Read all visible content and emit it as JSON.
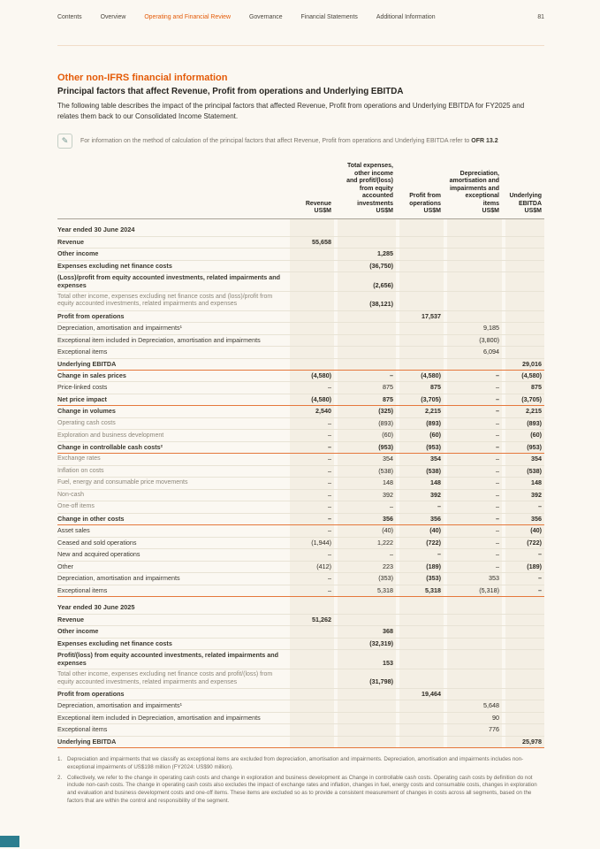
{
  "page": {
    "number": "81",
    "nav": {
      "items": [
        "Contents",
        "Overview",
        "Operating and Financial Review",
        "Governance",
        "Financial Statements",
        "Additional Information"
      ],
      "active": "Operating and Financial Review"
    }
  },
  "section": {
    "title": "Other non-IFRS financial information",
    "subtitle": "Principal factors that affect Revenue, Profit from operations and Underlying EBITDA",
    "description": "The following table describes the impact of the principal factors that affected Revenue, Profit from operations and Underlying EBITDA for FY2025 and relates them back to our Consolidated Income Statement.",
    "note": "For information on the method of calculation of the principal factors that affect Revenue, Profit from operations and Underlying EBITDA refer to ",
    "note_ref": "OFR 13.2"
  },
  "table": {
    "col_headers": [
      "Revenue\nUS$M",
      "Total expenses,\nother income\nand profit/(loss)\nfrom equity\naccounted\ninvestments\nUS$M",
      "Profit from\noperations\nUS$M",
      "Depreciation,\namortisation and\nimpairments and\nexceptional\nitems\nUS$M",
      "Underlying\nEBITDA\nUS$M"
    ],
    "rows": [
      {
        "label": "Year ended 30 June 2024",
        "type": "section",
        "values": [
          "",
          "",
          "",
          "",
          ""
        ]
      },
      {
        "label": "Revenue",
        "type": "bold",
        "values": [
          "55,658",
          "",
          "",
          "",
          ""
        ]
      },
      {
        "label": "Other income",
        "type": "bold",
        "values": [
          "",
          "1,285",
          "",
          "",
          ""
        ]
      },
      {
        "label": "Expenses excluding net finance costs",
        "type": "bold",
        "values": [
          "",
          "(36,750)",
          "",
          "",
          ""
        ]
      },
      {
        "label": "(Loss)/profit from equity accounted investments, related impairments and expenses",
        "type": "bold",
        "values": [
          "",
          "(2,656)",
          "",
          "",
          ""
        ]
      },
      {
        "label": "Total other income, expenses excluding net finance costs and (loss)/profit from equity accounted investments, related impairments and expenses",
        "type": "gray",
        "vb": true,
        "values": [
          "",
          "(38,121)",
          "",
          "",
          ""
        ]
      },
      {
        "label": "Profit from operations",
        "type": "bold",
        "values": [
          "",
          "",
          "17,537",
          "",
          ""
        ]
      },
      {
        "label": "Depreciation, amortisation and impairments¹",
        "type": "normal",
        "values": [
          "",
          "",
          "",
          "9,185",
          ""
        ]
      },
      {
        "label": "Exceptional item included in Depreciation, amortisation and impairments",
        "type": "normal",
        "values": [
          "",
          "",
          "",
          "(3,800)",
          ""
        ]
      },
      {
        "label": "Exceptional items",
        "type": "normal",
        "values": [
          "",
          "",
          "",
          "6,094",
          ""
        ]
      },
      {
        "label": "Underlying EBITDA",
        "type": "bold",
        "orange": true,
        "values": [
          "",
          "",
          "",
          "",
          "29,016"
        ]
      },
      {
        "label": "Change in sales prices",
        "type": "bold",
        "emph": true,
        "values": [
          "(4,580)",
          "–",
          "(4,580)",
          "–",
          "(4,580)"
        ]
      },
      {
        "label": "Price-linked costs",
        "type": "normal",
        "emph": true,
        "values": [
          "–",
          "875",
          "875",
          "–",
          "875"
        ]
      },
      {
        "label": "Net price impact",
        "type": "bold",
        "orange": true,
        "values": [
          "(4,580)",
          "875",
          "(3,705)",
          "–",
          "(3,705)"
        ]
      },
      {
        "label": "Change in volumes",
        "type": "bold",
        "emph": true,
        "values": [
          "2,540",
          "(325)",
          "2,215",
          "–",
          "2,215"
        ]
      },
      {
        "label": "Operating cash costs",
        "type": "gray",
        "emph": true,
        "values": [
          "–",
          "(893)",
          "(893)",
          "–",
          "(893)"
        ]
      },
      {
        "label": "Exploration and business development",
        "type": "gray",
        "emph": true,
        "values": [
          "–",
          "(60)",
          "(60)",
          "–",
          "(60)"
        ]
      },
      {
        "label": "Change in controllable cash costs²",
        "type": "bold",
        "orange": true,
        "values": [
          "–",
          "(953)",
          "(953)",
          "–",
          "(953)"
        ]
      },
      {
        "label": "Exchange rates",
        "type": "gray",
        "emph": true,
        "values": [
          "–",
          "354",
          "354",
          "–",
          "354"
        ]
      },
      {
        "label": "Inflation on costs",
        "type": "gray",
        "emph": true,
        "values": [
          "–",
          "(538)",
          "(538)",
          "–",
          "(538)"
        ]
      },
      {
        "label": "Fuel, energy and consumable price movements",
        "type": "gray",
        "emph": true,
        "values": [
          "–",
          "148",
          "148",
          "–",
          "148"
        ]
      },
      {
        "label": "Non-cash",
        "type": "gray",
        "emph": true,
        "values": [
          "–",
          "392",
          "392",
          "–",
          "392"
        ]
      },
      {
        "label": "One-off items",
        "type": "gray",
        "emph": true,
        "values": [
          "–",
          "–",
          "–",
          "–",
          "–"
        ]
      },
      {
        "label": "Change in other costs",
        "type": "bold",
        "orange": true,
        "values": [
          "–",
          "356",
          "356",
          "–",
          "356"
        ]
      },
      {
        "label": "Asset sales",
        "type": "normal",
        "emph": true,
        "values": [
          "–",
          "(40)",
          "(40)",
          "–",
          "(40)"
        ]
      },
      {
        "label": "Ceased and sold operations",
        "type": "normal",
        "emph": true,
        "values": [
          "(1,944)",
          "1,222",
          "(722)",
          "–",
          "(722)"
        ]
      },
      {
        "label": "New and acquired operations",
        "type": "normal",
        "emph": true,
        "values": [
          "–",
          "–",
          "–",
          "–",
          "–"
        ]
      },
      {
        "label": "Other",
        "type": "normal",
        "emph": true,
        "values": [
          "(412)",
          "223",
          "(189)",
          "–",
          "(189)"
        ]
      },
      {
        "label": "Depreciation, amortisation and impairments",
        "type": "normal",
        "emph": true,
        "values": [
          "–",
          "(353)",
          "(353)",
          "353",
          "–"
        ]
      },
      {
        "label": "Exceptional items",
        "type": "normal",
        "emph": true,
        "orange": true,
        "values": [
          "–",
          "5,318",
          "5,318",
          "(5,318)",
          "–"
        ]
      },
      {
        "label": "Year ended 30 June 2025",
        "type": "section",
        "values": [
          "",
          "",
          "",
          "",
          ""
        ]
      },
      {
        "label": "Revenue",
        "type": "bold",
        "values": [
          "51,262",
          "",
          "",
          "",
          ""
        ]
      },
      {
        "label": "Other income",
        "type": "bold",
        "values": [
          "",
          "368",
          "",
          "",
          ""
        ]
      },
      {
        "label": "Expenses excluding net finance costs",
        "type": "bold",
        "values": [
          "",
          "(32,319)",
          "",
          "",
          ""
        ]
      },
      {
        "label": "Profit/(loss) from equity accounted investments, related impairments and expenses",
        "type": "bold",
        "values": [
          "",
          "153",
          "",
          "",
          ""
        ]
      },
      {
        "label": "Total other income, expenses excluding net finance costs and profit/(loss) from equity accounted investments, related impairments and expenses",
        "type": "gray",
        "vb": true,
        "values": [
          "",
          "(31,798)",
          "",
          "",
          ""
        ]
      },
      {
        "label": "Profit from operations",
        "type": "bold",
        "values": [
          "",
          "",
          "19,464",
          "",
          ""
        ]
      },
      {
        "label": "Depreciation, amortisation and impairments¹",
        "type": "normal",
        "values": [
          "",
          "",
          "",
          "5,648",
          ""
        ]
      },
      {
        "label": "Exceptional item included in Depreciation, amortisation and impairments",
        "type": "normal",
        "values": [
          "",
          "",
          "",
          "90",
          ""
        ]
      },
      {
        "label": "Exceptional items",
        "type": "normal",
        "values": [
          "",
          "",
          "",
          "776",
          ""
        ]
      },
      {
        "label": "Underlying EBITDA",
        "type": "bold",
        "orange": true,
        "values": [
          "",
          "",
          "",
          "",
          "25,978"
        ]
      }
    ]
  },
  "footnotes": [
    "Depreciation and impairments that we classify as exceptional items are excluded from depreciation, amortisation and impairments. Depreciation, amortisation and impairments includes non-exceptional impairments of US$198 million (FY2024: US$90 million).",
    "Collectively, we refer to the change in operating cash costs and change in exploration and business development as Change in controllable cash costs. Operating cash costs by definition do not include non-cash costs. The change in operating cash costs also excludes the impact of exchange rates and inflation, changes in fuel, energy costs and consumable costs, changes in exploration and evaluation and business development costs and one-off items. These items are excluded so as to provide a consistent measurement of changes in costs across all segments, based on the factors that are within the control and responsibility of the segment."
  ],
  "colors": {
    "accent_orange": "#e45b08",
    "cell_background": "#f4efe4",
    "corner_teal": "#2d7e8f"
  }
}
